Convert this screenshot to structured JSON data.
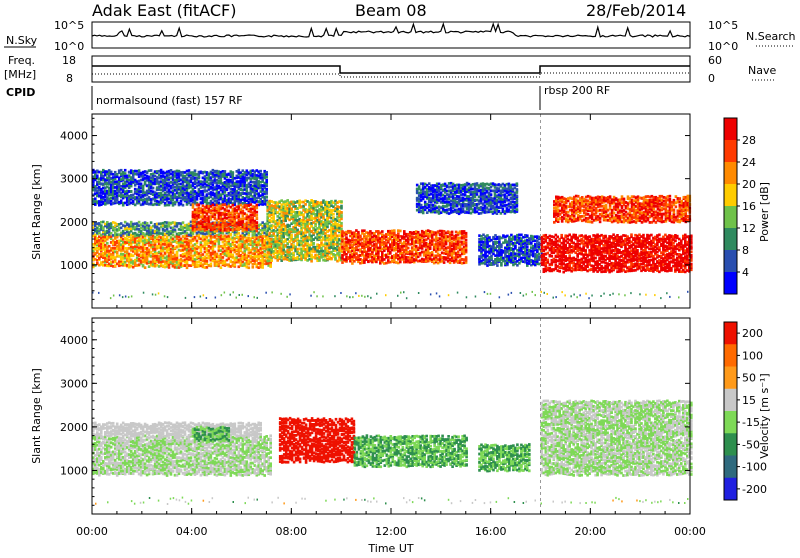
{
  "header": {
    "site": "Adak East (fitACF)",
    "beam": "Beam 08",
    "date": "28/Feb/2014"
  },
  "strips": {
    "nsky_label": "N.Sky",
    "nsearch_label": "N.Search",
    "nsky_ticks": [
      "10^5",
      "10^0"
    ],
    "nsearch_ticks": [
      "10^5",
      "10^0"
    ],
    "freq_label_1": "Freq.",
    "freq_label_2": "[MHz]",
    "freq_ticks": [
      "18",
      "8"
    ],
    "nave_label": "Nave",
    "nave_ticks": [
      "60",
      "0"
    ],
    "cpid_label": "CPID",
    "cpid_1": "normalsound (fast) 157 RF",
    "cpid_2": "rbsp 200 RF"
  },
  "chart_data": [
    {
      "type": "heatmap",
      "name": "power",
      "ylabel": "Slant Range [km]",
      "xlabel": "",
      "ylim": [
        0,
        4500
      ],
      "yticks": [
        "1000",
        "2000",
        "3000",
        "4000"
      ],
      "xlim": [
        "00:00",
        "24:00"
      ],
      "colorbar": {
        "label": "Power [dB]",
        "ticks": [
          "28",
          "24",
          "20",
          "16",
          "12",
          "8",
          "4"
        ],
        "colors": [
          "#0000ff",
          "#2a4fb0",
          "#2f8a5f",
          "#6fc24a",
          "#ffcc00",
          "#ff8a00",
          "#ff3a00",
          "#ee0000"
        ]
      },
      "regions": [
        {
          "t0": 0.0,
          "t1": 7.2,
          "r0": 950,
          "r1": 1700,
          "value": 20
        },
        {
          "t0": 0.0,
          "t1": 7.0,
          "r0": 1700,
          "r1": 2000,
          "value": 12
        },
        {
          "t0": 0.0,
          "t1": 7.0,
          "r0": 2400,
          "r1": 3200,
          "value": 8
        },
        {
          "t0": 4.0,
          "t1": 6.6,
          "r0": 1800,
          "r1": 2400,
          "value": 24
        },
        {
          "t0": 7.0,
          "t1": 10.0,
          "r0": 1100,
          "r1": 2500,
          "value": 16
        },
        {
          "t0": 10.0,
          "t1": 15.0,
          "r0": 1050,
          "r1": 1800,
          "value": 24
        },
        {
          "t0": 15.5,
          "t1": 18.0,
          "r0": 1000,
          "r1": 1700,
          "value": 8
        },
        {
          "t0": 18.0,
          "t1": 24.0,
          "r0": 850,
          "r1": 1700,
          "value": 28
        },
        {
          "t0": 18.5,
          "t1": 24.0,
          "r0": 2000,
          "r1": 2600,
          "value": 24
        },
        {
          "t0": 13.0,
          "t1": 17.0,
          "r0": 2200,
          "r1": 2900,
          "value": 8
        }
      ]
    },
    {
      "type": "heatmap",
      "name": "velocity",
      "ylabel": "Slant Range [km]",
      "xlabel": "Time UT",
      "ylim": [
        0,
        4500
      ],
      "yticks": [
        "1000",
        "2000",
        "3000",
        "4000"
      ],
      "xlim": [
        "00:00",
        "24:00"
      ],
      "xticks": [
        "00:00",
        "04:00",
        "08:00",
        "12:00",
        "16:00",
        "20:00",
        "00:00"
      ],
      "colorbar": {
        "label": "Velocity [m s⁻¹]",
        "ticks": [
          "200",
          "100",
          "50",
          "15",
          "-15",
          "-50",
          "-100",
          "-200"
        ],
        "colors": [
          "#2020e0",
          "#2f6a7e",
          "#2e8f4e",
          "#7ed957",
          "#c8c8c8",
          "#ff9a1a",
          "#ff6a00",
          "#ee1100"
        ]
      },
      "regions": [
        {
          "t0": 0.0,
          "t1": 7.2,
          "r0": 900,
          "r1": 1800,
          "value": 0
        },
        {
          "t0": 0.0,
          "t1": 6.8,
          "r0": 1800,
          "r1": 2100,
          "value": 30
        },
        {
          "t0": 4.0,
          "t1": 5.5,
          "r0": 1700,
          "r1": 2000,
          "value": -50
        },
        {
          "t0": 7.5,
          "t1": 10.5,
          "r0": 1200,
          "r1": 2200,
          "value": 200
        },
        {
          "t0": 10.5,
          "t1": 15.0,
          "r0": 1100,
          "r1": 1800,
          "value": -50
        },
        {
          "t0": 15.5,
          "t1": 17.5,
          "r0": 1000,
          "r1": 1600,
          "value": -50
        },
        {
          "t0": 18.0,
          "t1": 24.0,
          "r0": 900,
          "r1": 2600,
          "value": 0
        }
      ]
    }
  ]
}
